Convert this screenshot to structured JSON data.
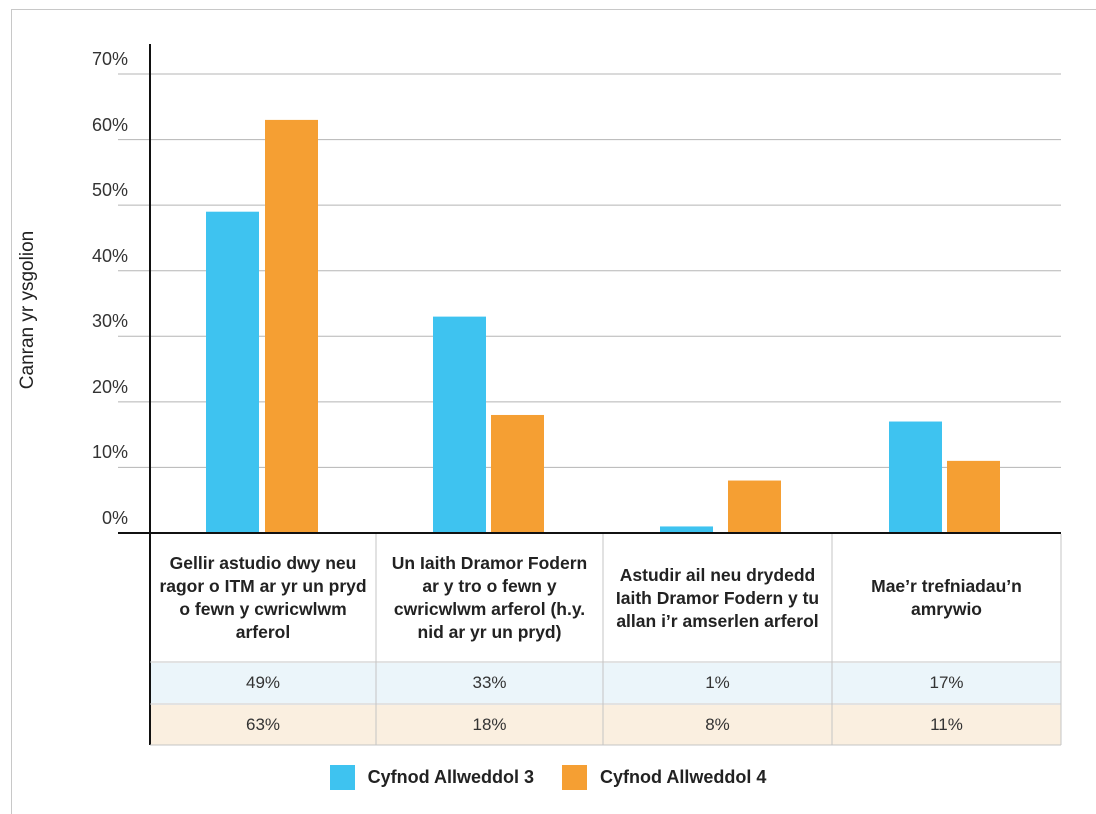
{
  "chart_data": {
    "type": "bar",
    "ylabel": "Canran yr ysgolion",
    "ylim": [
      0,
      70
    ],
    "yticks": [
      "0%",
      "10%",
      "20%",
      "30%",
      "40%",
      "50%",
      "60%",
      "70%"
    ],
    "grid": true,
    "legend_placement": "bottom",
    "categories": [
      "Gellir astudio dwy neu ragor o ITM ar yr un pryd o fewn y cwricwlwm arferol",
      "Un Iaith Dramor Fodern ar y tro o fewn y cwricwlwm arferol (h.y. nid ar yr un pryd)",
      "Astudir ail neu drydedd Iaith Dramor Fodern y tu allan i’r amserlen arferol",
      "Mae’r trefniadau’n amrywio"
    ],
    "series": [
      {
        "name": "Cyfnod Allweddol 3",
        "color": "#3ec3f0",
        "values": [
          49,
          33,
          1,
          17
        ],
        "labels": [
          "49%",
          "33%",
          "1%",
          "17%"
        ]
      },
      {
        "name": "Cyfnod Allweddol 4",
        "color": "#f59f33",
        "values": [
          63,
          18,
          8,
          11
        ],
        "labels": [
          "63%",
          "18%",
          "8%",
          "11%"
        ]
      }
    ],
    "table_row_colors": [
      "#ebf5fa",
      "#faefe0"
    ]
  }
}
